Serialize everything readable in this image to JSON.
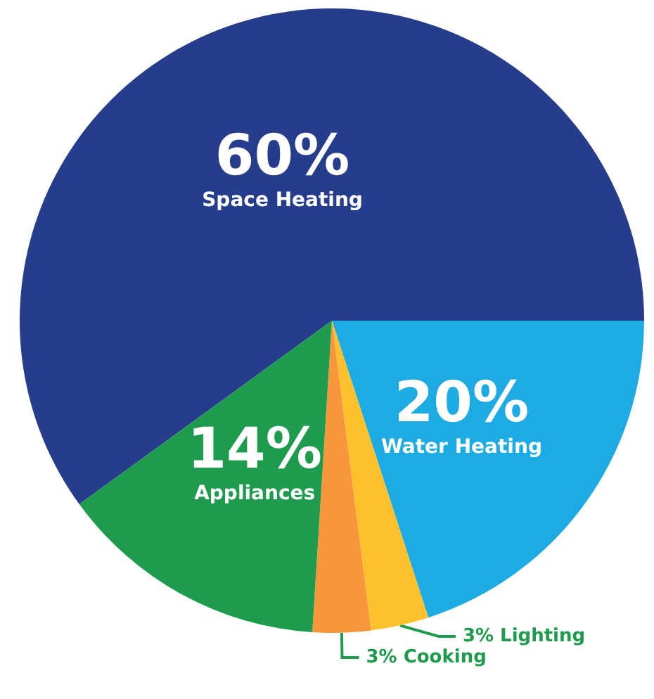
{
  "chart_data": {
    "type": "pie",
    "categories": [
      "Space Heating",
      "Water Heating",
      "Lighting",
      "Cooking",
      "Appliances"
    ],
    "values": [
      60,
      20,
      3,
      3,
      14
    ],
    "colors": [
      "#263d8c",
      "#1eaae2",
      "#fbc12d",
      "#f7963b",
      "#1e9b4d"
    ],
    "value_labels": [
      "60%",
      "20%",
      "3%",
      "3%",
      "14%"
    ],
    "legend": false
  }
}
